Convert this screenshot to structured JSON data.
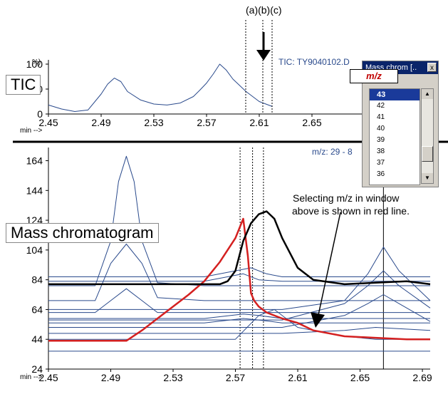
{
  "labels": {
    "abc": "(a)(b)(c)",
    "tic_box": "TIC",
    "mass_box": "Mass chromatogram",
    "tic_header": "TIC: TY9040102.D",
    "mz_header": "m/z: 29 - 8",
    "min_label_top": "min -->",
    "min_label_bottom": "min -->",
    "pct_label": "%)",
    "note_line1": "Selecting m/z in window",
    "note_line2": "above is shown in red line."
  },
  "window": {
    "title": "Mass chrom [..",
    "close": "x",
    "mz_label": "m/z",
    "items": [
      "43",
      "42",
      "41",
      "40",
      "39",
      "38",
      "37",
      "36"
    ],
    "selected": "43",
    "scroll_up": "▲",
    "scroll_down": "▼"
  },
  "chart_data": [
    {
      "type": "line",
      "title": "TIC",
      "x_ticks": [
        "2.45",
        "2.49",
        "2.53",
        "2.57",
        "2.61",
        "2.65"
      ],
      "y_ticks": [
        "100",
        "50",
        "0"
      ],
      "xlim": [
        2.45,
        2.69
      ],
      "ylim": [
        0,
        100
      ],
      "series": [
        {
          "color": "#2a4a8c",
          "x": [
            2.45,
            2.46,
            2.47,
            2.48,
            2.49,
            2.495,
            2.5,
            2.505,
            2.51,
            2.52,
            2.53,
            2.54,
            2.55,
            2.56,
            2.565,
            2.57,
            2.575,
            2.58,
            2.585,
            2.59,
            2.6,
            2.61,
            2.62
          ],
          "y": [
            18,
            10,
            5,
            8,
            40,
            60,
            72,
            65,
            45,
            28,
            20,
            18,
            22,
            35,
            48,
            62,
            80,
            100,
            88,
            70,
            45,
            25,
            15
          ]
        }
      ]
    },
    {
      "type": "line",
      "title": "Mass chromatogram",
      "x_ticks": [
        "2.45",
        "2.49",
        "2.53",
        "2.57",
        "2.61",
        "2.65",
        "2.69"
      ],
      "y_ticks": [
        "164",
        "144",
        "124",
        "104",
        "84",
        "64",
        "44",
        "24"
      ],
      "xlim": [
        2.45,
        2.695
      ],
      "ylim": [
        24,
        170
      ],
      "vlines": [
        2.573,
        2.581,
        2.588,
        2.665
      ],
      "series": [
        {
          "color": "#2a4a8c",
          "x": [
            2.45,
            2.48,
            2.49,
            2.495,
            2.5,
            2.505,
            2.51,
            2.52,
            2.55,
            2.6,
            2.66,
            2.695
          ],
          "y": [
            80,
            80,
            110,
            150,
            167,
            150,
            110,
            82,
            80,
            80,
            80,
            80
          ]
        },
        {
          "color": "#2a4a8c",
          "x": [
            2.45,
            2.48,
            2.49,
            2.5,
            2.51,
            2.52,
            2.55,
            2.6,
            2.66,
            2.695
          ],
          "y": [
            70,
            70,
            95,
            108,
            95,
            72,
            70,
            70,
            70,
            70
          ]
        },
        {
          "color": "#2a4a8c",
          "x": [
            2.45,
            2.48,
            2.49,
            2.5,
            2.51,
            2.52,
            2.55,
            2.6,
            2.66,
            2.695
          ],
          "y": [
            62,
            62,
            70,
            78,
            70,
            62,
            62,
            62,
            62,
            62
          ]
        },
        {
          "color": "#2a4a8c",
          "x": [
            2.45,
            2.5,
            2.55,
            2.58,
            2.6,
            2.64,
            2.655,
            2.665,
            2.675,
            2.695
          ],
          "y": [
            64,
            64,
            64,
            64,
            64,
            70,
            88,
            106,
            90,
            70
          ]
        },
        {
          "color": "#2a4a8c",
          "x": [
            2.45,
            2.5,
            2.55,
            2.58,
            2.6,
            2.64,
            2.655,
            2.665,
            2.675,
            2.695
          ],
          "y": [
            57,
            57,
            57,
            57,
            57,
            68,
            80,
            90,
            80,
            65
          ]
        },
        {
          "color": "#2a4a8c",
          "x": [
            2.45,
            2.5,
            2.55,
            2.58,
            2.6,
            2.64,
            2.655,
            2.665,
            2.675,
            2.695
          ],
          "y": [
            52,
            52,
            52,
            52,
            52,
            60,
            68,
            74,
            68,
            56
          ]
        },
        {
          "color": "#2a4a8c",
          "x": [
            2.45,
            2.5,
            2.55,
            2.575,
            2.585,
            2.6,
            2.63,
            2.66,
            2.695
          ],
          "y": [
            83,
            83,
            83,
            88,
            84,
            83,
            83,
            83,
            83
          ]
        },
        {
          "color": "#2a4a8c",
          "x": [
            2.45,
            2.5,
            2.55,
            2.57,
            2.58,
            2.59,
            2.6,
            2.65,
            2.695
          ],
          "y": [
            86,
            86,
            86,
            90,
            92,
            88,
            86,
            86,
            86
          ]
        },
        {
          "color": "#2a4a8c",
          "x": [
            2.45,
            2.55,
            2.575,
            2.585,
            2.6,
            2.695
          ],
          "y": [
            58,
            58,
            61,
            60,
            58,
            58
          ]
        },
        {
          "color": "#2a4a8c",
          "x": [
            2.45,
            2.55,
            2.575,
            2.585,
            2.6,
            2.695
          ],
          "y": [
            55,
            55,
            58,
            57,
            55,
            55
          ]
        },
        {
          "color": "#2a4a8c",
          "x": [
            2.45,
            2.55,
            2.6,
            2.65,
            2.695
          ],
          "y": [
            36,
            36,
            36,
            36,
            36
          ]
        },
        {
          "color": "#2a4a8c",
          "x": [
            2.45,
            2.55,
            2.6,
            2.64,
            2.66,
            2.695
          ],
          "y": [
            48,
            48,
            48,
            50,
            52,
            50
          ]
        },
        {
          "color": "#2a4a8c",
          "x": [
            2.45,
            2.57,
            2.585,
            2.595,
            2.61,
            2.64,
            2.66,
            2.695
          ],
          "y": [
            44,
            44,
            60,
            64,
            52,
            46,
            44,
            44
          ]
        },
        {
          "color": "#d42020",
          "width": 2.5,
          "x": [
            2.45,
            2.475,
            2.48,
            2.485,
            2.49,
            2.5,
            2.51,
            2.52,
            2.53,
            2.54,
            2.55,
            2.56,
            2.57,
            2.575,
            2.578,
            2.58,
            2.582,
            2.585,
            2.59,
            2.6,
            2.61,
            2.62,
            2.64,
            2.66,
            2.68,
            2.695
          ],
          "y": [
            43,
            43,
            43,
            43,
            43,
            43,
            50,
            58,
            66,
            74,
            83,
            96,
            112,
            125,
            100,
            75,
            70,
            66,
            62,
            58,
            55,
            50,
            46,
            45,
            44,
            44
          ]
        },
        {
          "color": "#000000",
          "width": 2.5,
          "x": [
            2.45,
            2.49,
            2.52,
            2.55,
            2.56,
            2.565,
            2.57,
            2.575,
            2.58,
            2.585,
            2.59,
            2.595,
            2.6,
            2.61,
            2.62,
            2.64,
            2.66,
            2.68,
            2.695
          ],
          "y": [
            81,
            81,
            81,
            81,
            81,
            83,
            90,
            110,
            122,
            128,
            130,
            125,
            112,
            92,
            84,
            81,
            82,
            83,
            81
          ]
        }
      ]
    }
  ]
}
